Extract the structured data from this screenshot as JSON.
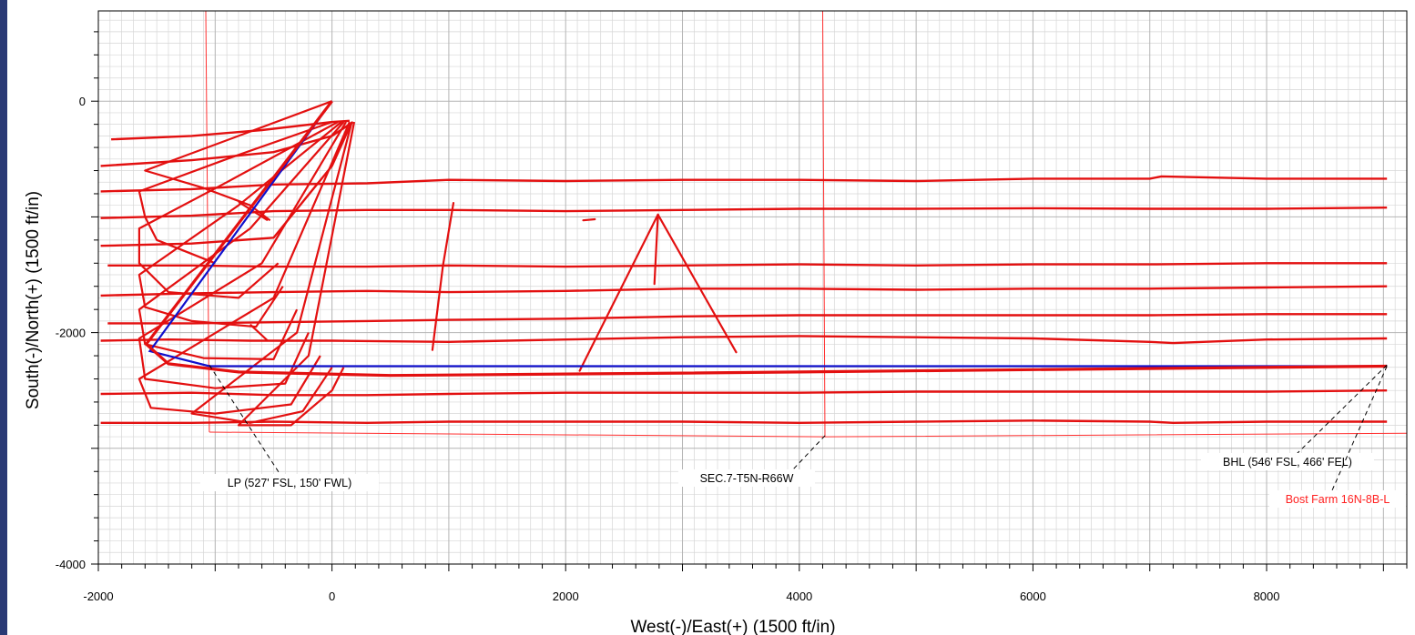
{
  "chart_data": {
    "type": "line",
    "xlabel": "West(-)/East(+) (1500 ft/in)",
    "ylabel": "South(-)/North(+)  (1500 ft/in)",
    "xlim": [
      -2000,
      9200
    ],
    "ylim": [
      -4000,
      780
    ],
    "x_ticks": [
      "-2000",
      "0",
      "2000",
      "4000",
      "6000",
      "8000"
    ],
    "y_ticks": [
      "0",
      "-2000",
      "-4000"
    ],
    "grid": true,
    "colors": {
      "wells": "#e31010",
      "plan": "#1010cc",
      "lease": "#ff3030"
    },
    "annotations": [
      {
        "text": "LP (527' FSL, 150' FWL)",
        "x": -1050,
        "y": -2280
      },
      {
        "text": "SEC.7-T5N-R66W",
        "x": 4220,
        "y": -2890
      },
      {
        "text": "BHL (546' FSL, 466' FEL)",
        "x": 9030,
        "y": -2280
      },
      {
        "text": "Bost Farm 16N-8B-L",
        "x": 9030,
        "y": -2290
      }
    ],
    "lease_lines": [
      {
        "name": "west-line",
        "points": [
          [
            -1080,
            780
          ],
          [
            -1050,
            -2860
          ]
        ]
      },
      {
        "name": "south-line",
        "points": [
          [
            -1050,
            -2860
          ],
          [
            4220,
            -2900
          ],
          [
            9200,
            -2870
          ]
        ]
      },
      {
        "name": "east-line",
        "points": [
          [
            4200,
            780
          ],
          [
            4220,
            -2900
          ]
        ]
      }
    ],
    "plan": [
      [
        0,
        0
      ],
      [
        -1560,
        -2160
      ],
      [
        -1050,
        -2290
      ],
      [
        9030,
        -2290
      ]
    ],
    "target_well": [
      [
        0,
        0
      ],
      [
        -1590,
        -2100
      ],
      [
        -1400,
        -2270
      ],
      [
        -800,
        -2340
      ],
      [
        500,
        -2370
      ],
      [
        3000,
        -2350
      ],
      [
        6000,
        -2320
      ],
      [
        9030,
        -2290
      ]
    ],
    "laterals": [
      {
        "name": "lateral-1",
        "points": [
          [
            -1890,
            -330
          ],
          [
            -1200,
            -300
          ],
          [
            -600,
            -250
          ],
          [
            0,
            -180
          ],
          [
            150,
            -170
          ]
        ]
      },
      {
        "name": "lateral-2",
        "points": [
          [
            -1980,
            -560
          ],
          [
            -1200,
            -510
          ],
          [
            -500,
            -440
          ],
          [
            0,
            -300
          ],
          [
            180,
            -180
          ]
        ]
      },
      {
        "name": "lateral-3",
        "points": [
          [
            -1980,
            -780
          ],
          [
            -1200,
            -760
          ],
          [
            -500,
            -720
          ],
          [
            300,
            -710
          ],
          [
            1000,
            -680
          ],
          [
            2000,
            -690
          ],
          [
            3000,
            -680
          ],
          [
            4000,
            -680
          ],
          [
            5000,
            -690
          ],
          [
            6000,
            -670
          ],
          [
            7000,
            -670
          ],
          [
            7100,
            -650
          ],
          [
            8000,
            -670
          ],
          [
            9030,
            -670
          ]
        ]
      },
      {
        "name": "lateral-4",
        "points": [
          [
            -1980,
            -1010
          ],
          [
            -1200,
            -990
          ],
          [
            -500,
            -950
          ],
          [
            300,
            -940
          ],
          [
            1000,
            -940
          ],
          [
            2000,
            -950
          ],
          [
            3000,
            -940
          ],
          [
            4000,
            -930
          ],
          [
            5000,
            -930
          ],
          [
            6000,
            -925
          ],
          [
            7000,
            -930
          ],
          [
            8000,
            -930
          ],
          [
            9030,
            -920
          ]
        ]
      },
      {
        "name": "lateral-5",
        "points": [
          [
            -1980,
            -1250
          ],
          [
            -1200,
            -1230
          ],
          [
            -500,
            -1180
          ],
          [
            0,
            -560
          ],
          [
            170,
            -180
          ]
        ]
      },
      {
        "name": "lateral-6",
        "points": [
          [
            -1920,
            -1420
          ],
          [
            -1200,
            -1420
          ],
          [
            -500,
            -1430
          ],
          [
            300,
            -1430
          ],
          [
            1000,
            -1420
          ],
          [
            2000,
            -1430
          ],
          [
            3000,
            -1420
          ],
          [
            4000,
            -1410
          ],
          [
            5000,
            -1420
          ],
          [
            6000,
            -1410
          ],
          [
            7000,
            -1410
          ],
          [
            8000,
            -1400
          ],
          [
            9030,
            -1400
          ]
        ]
      },
      {
        "name": "lateral-7",
        "points": [
          [
            -1980,
            -1680
          ],
          [
            -1200,
            -1660
          ],
          [
            -500,
            -1650
          ],
          [
            300,
            -1640
          ],
          [
            1000,
            -1650
          ],
          [
            2000,
            -1640
          ],
          [
            3000,
            -1620
          ],
          [
            4000,
            -1620
          ],
          [
            5000,
            -1630
          ],
          [
            6000,
            -1620
          ],
          [
            7000,
            -1620
          ],
          [
            8000,
            -1610
          ],
          [
            9030,
            -1600
          ]
        ]
      },
      {
        "name": "lateral-8",
        "points": [
          [
            -1920,
            -1920
          ],
          [
            -1200,
            -1920
          ],
          [
            -500,
            -1910
          ],
          [
            300,
            -1900
          ],
          [
            1000,
            -1890
          ],
          [
            2000,
            -1880
          ],
          [
            3000,
            -1860
          ],
          [
            4000,
            -1850
          ],
          [
            5000,
            -1850
          ],
          [
            6000,
            -1850
          ],
          [
            7000,
            -1850
          ],
          [
            8000,
            -1840
          ],
          [
            9030,
            -1840
          ]
        ]
      },
      {
        "name": "lateral-9",
        "points": [
          [
            -1980,
            -2070
          ],
          [
            -1400,
            -2060
          ],
          [
            -700,
            -2070
          ],
          [
            0,
            -2070
          ],
          [
            1000,
            -2080
          ],
          [
            2000,
            -2060
          ],
          [
            3000,
            -2040
          ],
          [
            4000,
            -2030
          ],
          [
            5000,
            -2040
          ],
          [
            6000,
            -2050
          ],
          [
            7000,
            -2080
          ],
          [
            7200,
            -2090
          ],
          [
            8000,
            -2060
          ],
          [
            9030,
            -2050
          ]
        ]
      },
      {
        "name": "lateral-10",
        "points": [
          [
            -1980,
            -2530
          ],
          [
            -1200,
            -2520
          ],
          [
            -500,
            -2540
          ],
          [
            300,
            -2540
          ],
          [
            1000,
            -2530
          ],
          [
            2000,
            -2520
          ],
          [
            3000,
            -2520
          ],
          [
            4000,
            -2520
          ],
          [
            5000,
            -2510
          ],
          [
            6000,
            -2510
          ],
          [
            7000,
            -2510
          ],
          [
            8000,
            -2510
          ],
          [
            9030,
            -2500
          ]
        ]
      },
      {
        "name": "lateral-11",
        "points": [
          [
            -1980,
            -2780
          ],
          [
            -1200,
            -2780
          ],
          [
            -500,
            -2770
          ],
          [
            300,
            -2780
          ],
          [
            1000,
            -2770
          ],
          [
            2000,
            -2770
          ],
          [
            3000,
            -2770
          ],
          [
            4000,
            -2780
          ],
          [
            5000,
            -2770
          ],
          [
            6000,
            -2760
          ],
          [
            7000,
            -2770
          ],
          [
            7200,
            -2780
          ],
          [
            8000,
            -2770
          ],
          [
            9030,
            -2770
          ]
        ]
      }
    ],
    "build_curves": [
      {
        "name": "build-1",
        "points": [
          [
            0,
            0
          ],
          [
            -800,
            -300
          ],
          [
            -1600,
            -600
          ],
          [
            -1100,
            -750
          ],
          [
            -700,
            -900
          ],
          [
            -530,
            -1030
          ]
        ]
      },
      {
        "name": "build-2",
        "points": [
          [
            0,
            -180
          ],
          [
            -900,
            -500
          ],
          [
            -1650,
            -780
          ],
          [
            -1600,
            -1000
          ],
          [
            -1500,
            -1200
          ],
          [
            -1000,
            -1400
          ]
        ]
      },
      {
        "name": "build-3",
        "points": [
          [
            50,
            -180
          ],
          [
            -900,
            -700
          ],
          [
            -1650,
            -1100
          ],
          [
            -1650,
            -1400
          ],
          [
            -1400,
            -1650
          ],
          [
            -800,
            -1700
          ],
          [
            -460,
            -1400
          ]
        ]
      },
      {
        "name": "build-4",
        "points": [
          [
            80,
            -180
          ],
          [
            -800,
            -900
          ],
          [
            -1650,
            -1500
          ],
          [
            -1600,
            -1780
          ],
          [
            -1200,
            -1900
          ],
          [
            -650,
            -1950
          ],
          [
            -420,
            -1600
          ]
        ]
      },
      {
        "name": "build-5",
        "points": [
          [
            100,
            -180
          ],
          [
            -700,
            -1100
          ],
          [
            -1650,
            -1800
          ],
          [
            -1600,
            -2100
          ],
          [
            -1100,
            -2220
          ],
          [
            -500,
            -2230
          ],
          [
            -300,
            -1800
          ]
        ]
      },
      {
        "name": "build-6",
        "points": [
          [
            120,
            -180
          ],
          [
            -600,
            -1400
          ],
          [
            -1650,
            -2050
          ],
          [
            -1600,
            -2400
          ],
          [
            -1000,
            -2480
          ],
          [
            -400,
            -2440
          ],
          [
            -200,
            -2000
          ]
        ]
      },
      {
        "name": "build-7",
        "points": [
          [
            150,
            -180
          ],
          [
            -500,
            -1700
          ],
          [
            -1650,
            -2400
          ],
          [
            -1550,
            -2650
          ],
          [
            -1000,
            -2700
          ],
          [
            -350,
            -2620
          ],
          [
            -100,
            -2200
          ]
        ]
      },
      {
        "name": "build-8",
        "points": [
          [
            170,
            -180
          ],
          [
            -300,
            -2000
          ],
          [
            -1200,
            -2700
          ],
          [
            -700,
            -2780
          ],
          [
            -250,
            -2680
          ],
          [
            0,
            -2300
          ]
        ]
      },
      {
        "name": "build-9",
        "points": [
          [
            190,
            -180
          ],
          [
            -200,
            -2200
          ],
          [
            -800,
            -2800
          ],
          [
            -350,
            -2800
          ],
          [
            0,
            -2500
          ],
          [
            100,
            -2300
          ]
        ]
      },
      {
        "name": "build-10",
        "points": [
          [
            -700,
            -1930
          ],
          [
            -550,
            -2070
          ]
        ]
      },
      {
        "name": "build-11",
        "points": [
          [
            -800,
            -870
          ],
          [
            -550,
            -1030
          ]
        ]
      }
    ],
    "pilot_segments": [
      {
        "name": "pilot-1",
        "points": [
          [
            1040,
            -880
          ],
          [
            950,
            -1420
          ],
          [
            860,
            -2150
          ]
        ]
      },
      {
        "name": "pilot-2",
        "points": [
          [
            2150,
            -1030
          ],
          [
            2250,
            -1020
          ]
        ]
      },
      {
        "name": "pilot-3",
        "points": [
          [
            2790,
            -980
          ],
          [
            2760,
            -1580
          ]
        ]
      },
      {
        "name": "pilot-4",
        "points": [
          [
            2120,
            -2330
          ],
          [
            2790,
            -980
          ],
          [
            3460,
            -2170
          ]
        ]
      }
    ]
  }
}
